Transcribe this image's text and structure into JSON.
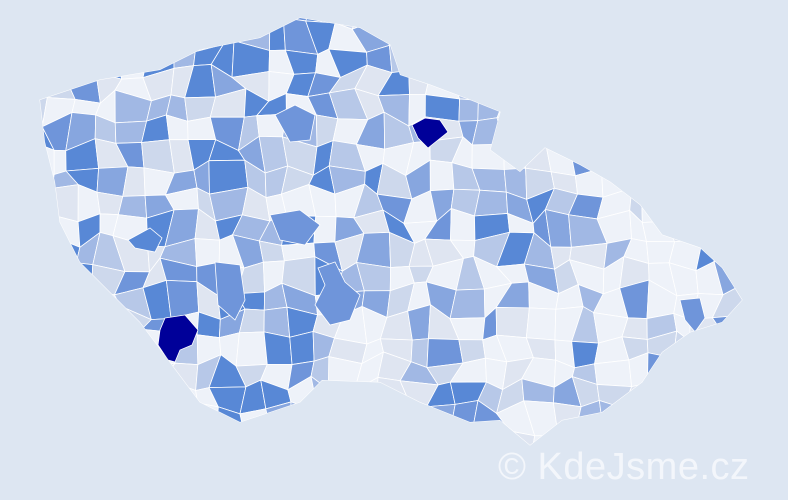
{
  "map": {
    "background": "#dde6f2",
    "palette": [
      "#eef2f9",
      "#dfe5f1",
      "#cdd8ec",
      "#b7c8e8",
      "#a1b8e4",
      "#87a6df",
      "#6f95da",
      "#5888d6",
      "#000099"
    ],
    "highlight_color": "#000099"
  },
  "watermark": {
    "text": "© KdeJsme.cz"
  }
}
